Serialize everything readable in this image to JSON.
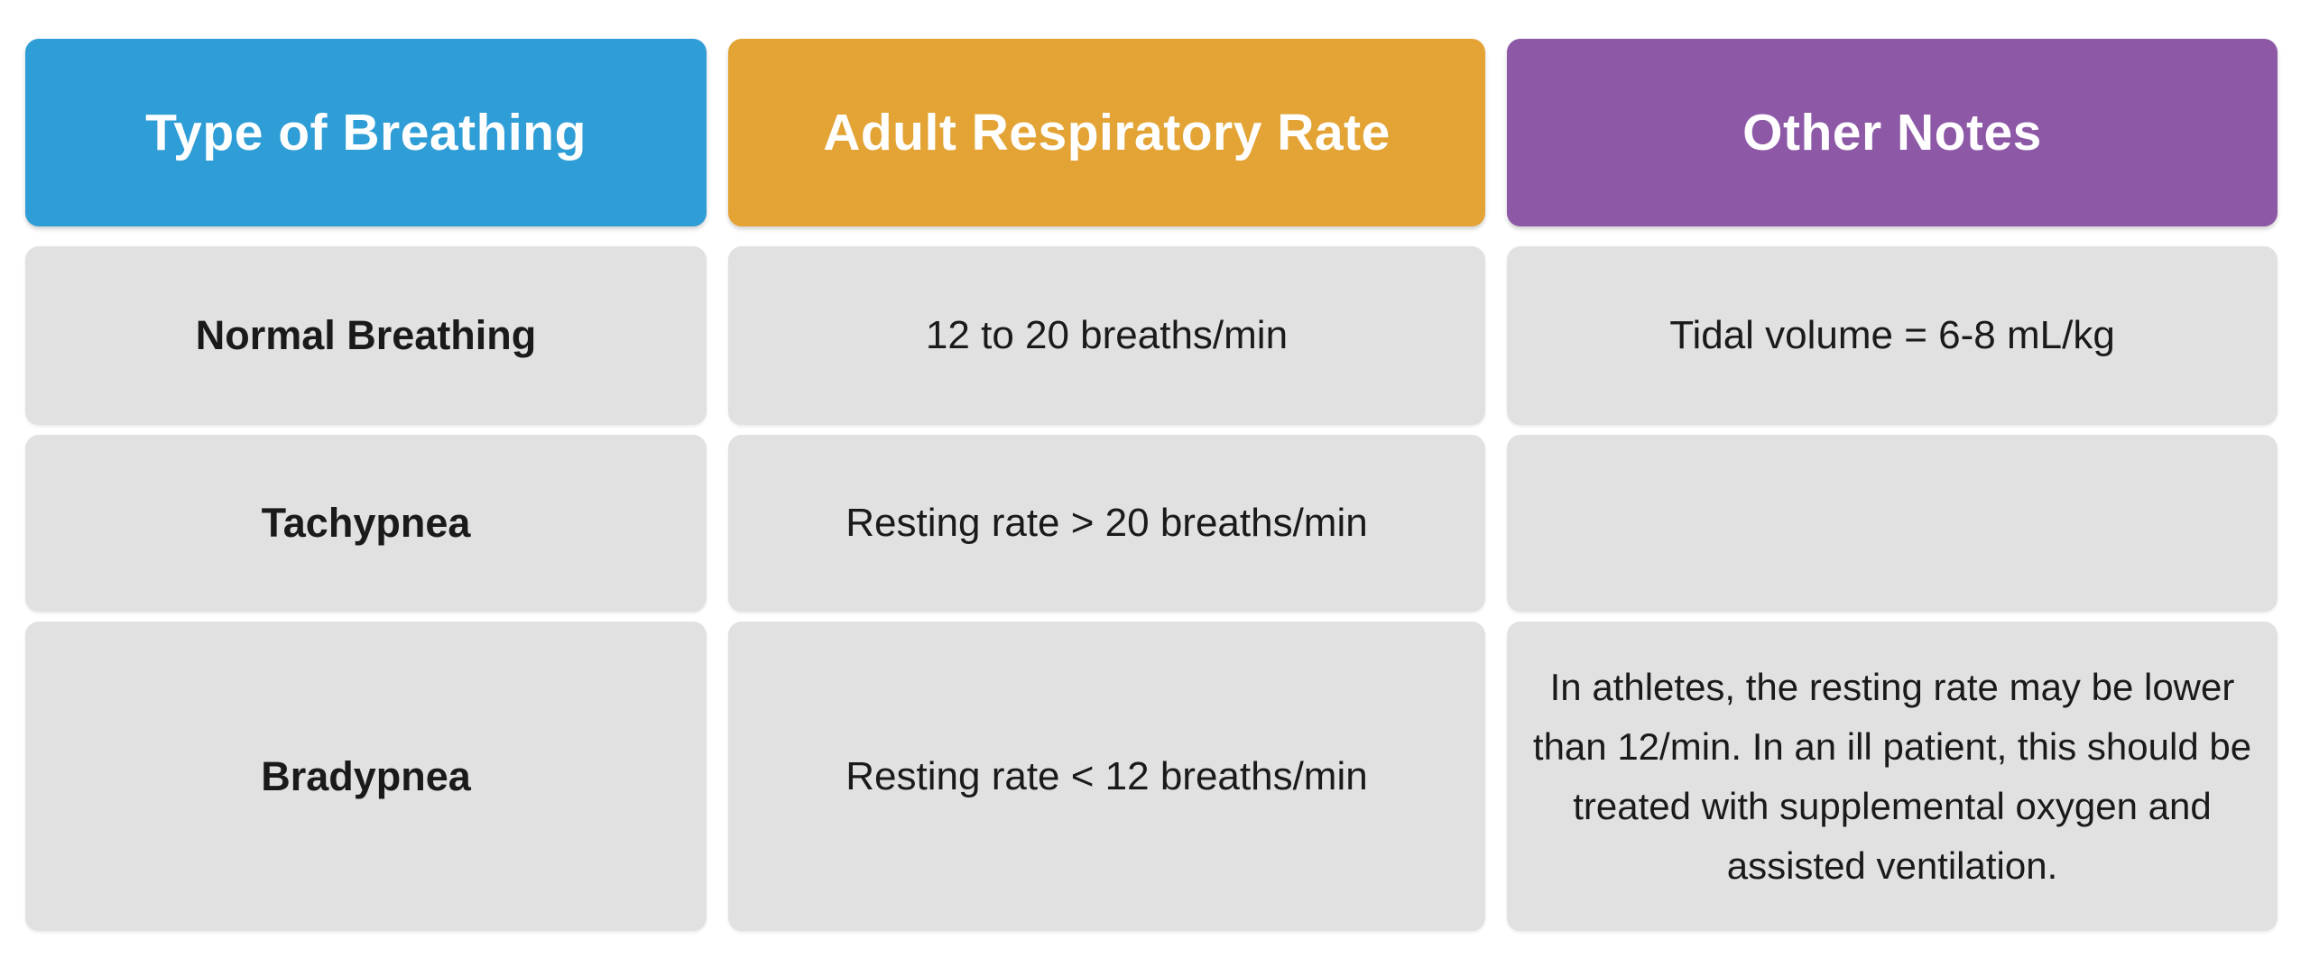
{
  "chart_data": {
    "type": "table",
    "title": "",
    "columns": [
      "Type of Breathing",
      "Adult Respiratory Rate",
      "Other Notes"
    ],
    "rows": [
      [
        "Normal Breathing",
        "12 to 20 breaths/min",
        "Tidal volume = 6-8 mL/kg"
      ],
      [
        "Tachypnea",
        "Resting rate > 20 breaths/min",
        ""
      ],
      [
        "Bradypnea",
        "Resting rate < 12 breaths/min",
        "In athletes, the resting rate may be lower than 12/min. In an ill patient, this should be treated with supplemental oxygen and assisted ventilation."
      ]
    ],
    "layout": {
      "header_colors": [
        "#2F9DD6",
        "#E3A435",
        "#8D58A6"
      ],
      "header_text_color": "#FFFFFF",
      "cell_background": "#E1E1E1",
      "cell_text_color": "#1A1A1A",
      "page_background": "#FFFFFF"
    }
  }
}
